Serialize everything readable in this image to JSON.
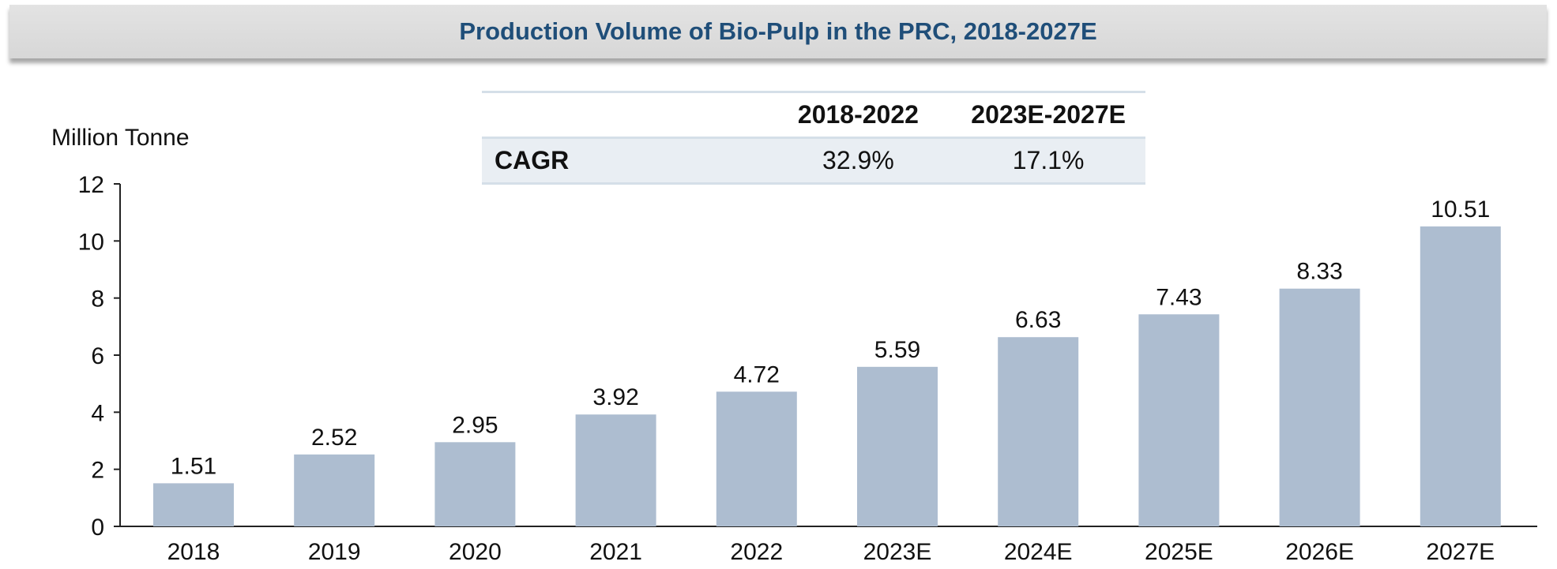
{
  "title": "Production Volume of Bio-Pulp in the PRC, 2018-2027E",
  "cagr_table": {
    "headers": [
      "",
      "2018-2022",
      "2023E-2027E"
    ],
    "row_label": "CAGR",
    "values": [
      "32.9%",
      "17.1%"
    ]
  },
  "colors": {
    "bar": "#adbdd0",
    "title_text": "#1f4e79",
    "title_bg": "#d9d9d9",
    "table_row_bg": "#e9eef3",
    "axis": "#222222"
  },
  "chart_data": {
    "type": "bar",
    "title": "Production Volume of Bio-Pulp in the PRC, 2018-2027E",
    "ylabel": "Million Tonne",
    "xlabel": "",
    "categories": [
      "2018",
      "2019",
      "2020",
      "2021",
      "2022",
      "2023E",
      "2024E",
      "2025E",
      "2026E",
      "2027E"
    ],
    "values": [
      1.51,
      2.52,
      2.95,
      3.92,
      4.72,
      5.59,
      6.63,
      7.43,
      8.33,
      10.51
    ],
    "data_labels": [
      "1.51",
      "2.52",
      "2.95",
      "3.92",
      "4.72",
      "5.59",
      "6.63",
      "7.43",
      "8.33",
      "10.51"
    ],
    "ylim": [
      0,
      12
    ],
    "yticks": [
      0,
      2,
      4,
      6,
      8,
      10,
      12
    ],
    "grid": false,
    "legend": "none"
  }
}
